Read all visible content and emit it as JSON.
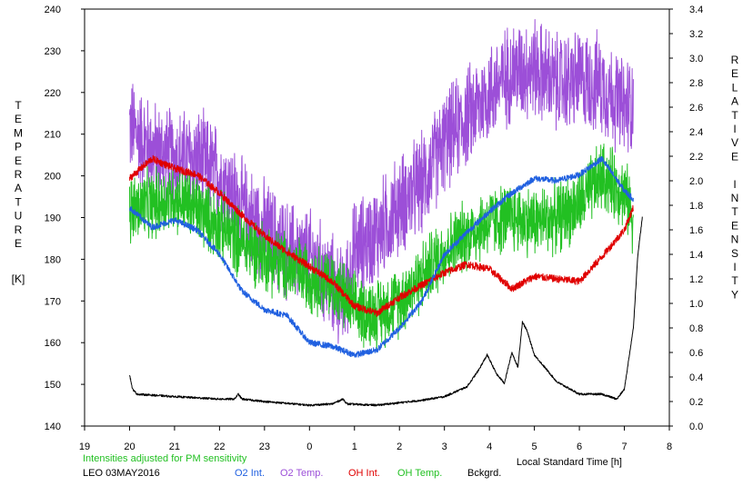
{
  "chart_data": {
    "type": "line",
    "left_axis": {
      "label_letters": [
        "T",
        "E",
        "M",
        "P",
        "E",
        "R",
        "A",
        "T",
        "U",
        "R",
        "E"
      ],
      "unit": "[K]",
      "ylim": [
        140,
        240
      ],
      "ticks": [
        "140",
        "150",
        "160",
        "170",
        "180",
        "190",
        "200",
        "210",
        "220",
        "230",
        "240"
      ]
    },
    "right_axis": {
      "label_letters": [
        "R",
        "E",
        "L",
        "A",
        "T",
        "I",
        "V",
        "E",
        "",
        "I",
        "N",
        "T",
        "E",
        "N",
        "S",
        "I",
        "T",
        "Y"
      ],
      "ylim": [
        0,
        3.4
      ],
      "ticks": [
        "0.0",
        "0.2",
        "0.4",
        "0.6",
        "0.8",
        "1.0",
        "1.2",
        "1.4",
        "1.6",
        "1.8",
        "2.0",
        "2.2",
        "2.4",
        "2.6",
        "2.8",
        "3.0",
        "3.2",
        "3.4"
      ]
    },
    "x_axis": {
      "label": "Local Standard Time [h]",
      "range_note": "hours from 19 to 8 (local time, across midnight)",
      "ticks": [
        "19",
        "20",
        "21",
        "22",
        "23",
        "0",
        "1",
        "2",
        "3",
        "4",
        "5",
        "6",
        "7",
        "8"
      ]
    },
    "note": "Intensities adjusted for PM sensitivity",
    "station": "LEO 03MAY2016",
    "colors": {
      "o2_int": "#2060e0",
      "o2_temp": "#9c4fd8",
      "oh_int": "#e00000",
      "oh_temp": "#22c022",
      "bckgrd": "#000000",
      "note": "#22c022"
    },
    "legend": [
      {
        "key": "o2_int",
        "label": "O2 Int."
      },
      {
        "key": "o2_temp",
        "label": "O2 Temp."
      },
      {
        "key": "oh_int",
        "label": "OH Int."
      },
      {
        "key": "oh_temp",
        "label": "OH Temp."
      },
      {
        "key": "bckgrd",
        "label": "Bckgrd."
      }
    ],
    "series": [
      {
        "key": "o2_temp",
        "axis": "left",
        "noise": 10,
        "x": [
          "20:00",
          "20:30",
          "21:00",
          "21:30",
          "22:00",
          "22:30",
          "23:00",
          "23:30",
          "00:00",
          "00:30",
          "00:45",
          "01:00",
          "01:30",
          "02:00",
          "02:30",
          "03:00",
          "03:30",
          "04:00",
          "04:30",
          "05:00",
          "05:30",
          "06:00",
          "06:30",
          "07:00",
          "07:12"
        ],
        "y": [
          212,
          206,
          204,
          204,
          200,
          192,
          187,
          182,
          180,
          174,
          170,
          182,
          186,
          193,
          198,
          208,
          214,
          220,
          225,
          226,
          222,
          223,
          222,
          216,
          218
        ]
      },
      {
        "key": "oh_temp",
        "axis": "left",
        "noise": 7,
        "x": [
          "20:00",
          "20:30",
          "21:00",
          "21:30",
          "22:00",
          "22:30",
          "23:00",
          "23:30",
          "00:00",
          "00:30",
          "01:00",
          "01:30",
          "02:00",
          "02:30",
          "03:00",
          "03:30",
          "04:00",
          "04:30",
          "05:00",
          "05:30",
          "06:00",
          "06:30",
          "07:00",
          "07:12"
        ],
        "y": [
          192,
          193,
          195,
          192,
          188,
          184,
          181,
          178,
          176,
          174,
          168,
          167,
          170,
          176,
          182,
          186,
          189,
          190,
          189,
          190,
          193,
          200,
          196,
          190
        ]
      },
      {
        "key": "oh_int",
        "axis": "right",
        "noise": 0.03,
        "x": [
          "20:00",
          "20:30",
          "21:00",
          "21:30",
          "22:00",
          "22:30",
          "23:00",
          "23:30",
          "00:00",
          "00:30",
          "01:00",
          "01:30",
          "02:00",
          "02:30",
          "03:00",
          "03:30",
          "04:00",
          "04:30",
          "05:00",
          "05:30",
          "06:00",
          "06:30",
          "07:00",
          "07:12"
        ],
        "y": [
          2.02,
          2.18,
          2.1,
          2.05,
          1.9,
          1.72,
          1.55,
          1.42,
          1.3,
          1.18,
          0.98,
          0.92,
          1.05,
          1.15,
          1.25,
          1.32,
          1.28,
          1.12,
          1.22,
          1.2,
          1.18,
          1.38,
          1.6,
          1.78
        ]
      },
      {
        "key": "o2_int",
        "axis": "right",
        "noise": 0.025,
        "x": [
          "20:00",
          "20:15",
          "20:30",
          "20:45",
          "21:00",
          "21:30",
          "22:00",
          "22:30",
          "23:00",
          "23:30",
          "00:00",
          "00:30",
          "01:00",
          "01:30",
          "02:00",
          "02:30",
          "03:00",
          "03:30",
          "04:00",
          "04:30",
          "05:00",
          "05:30",
          "06:00",
          "06:30",
          "07:00",
          "07:12"
        ],
        "y": [
          1.78,
          1.7,
          1.62,
          1.65,
          1.68,
          1.6,
          1.4,
          1.1,
          0.95,
          0.9,
          0.68,
          0.65,
          0.58,
          0.62,
          0.8,
          1.02,
          1.4,
          1.58,
          1.75,
          1.9,
          2.02,
          2.0,
          2.05,
          2.18,
          1.92,
          1.85
        ]
      },
      {
        "key": "bckgrd",
        "axis": "right",
        "noise": 0.008,
        "x": [
          "20:00",
          "20:04",
          "20:10",
          "21:00",
          "22:00",
          "22:20",
          "22:25",
          "22:30",
          "23:00",
          "00:00",
          "00:30",
          "00:45",
          "00:50",
          "01:30",
          "02:30",
          "03:00",
          "03:30",
          "03:45",
          "03:57",
          "04:10",
          "04:20",
          "04:30",
          "04:38",
          "04:44",
          "04:50",
          "05:00",
          "05:30",
          "06:00",
          "06:30",
          "06:50",
          "07:00",
          "07:12",
          "07:18",
          "07:24"
        ],
        "y": [
          0.42,
          0.3,
          0.26,
          0.24,
          0.22,
          0.22,
          0.26,
          0.22,
          0.2,
          0.17,
          0.18,
          0.22,
          0.18,
          0.17,
          0.21,
          0.24,
          0.32,
          0.45,
          0.58,
          0.42,
          0.35,
          0.6,
          0.48,
          0.85,
          0.78,
          0.58,
          0.36,
          0.26,
          0.26,
          0.22,
          0.3,
          0.8,
          1.4,
          1.7
        ]
      }
    ]
  }
}
